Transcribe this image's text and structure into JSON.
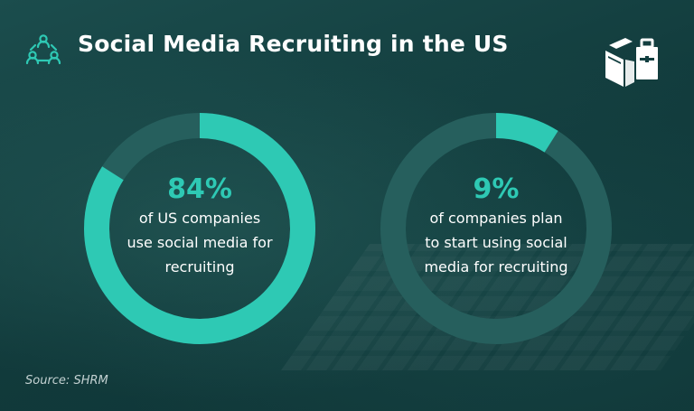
{
  "title": "Social Media Recruiting in the US",
  "source": "Source: SHRM",
  "colors": {
    "accent": "#2ec9b4",
    "track": "#265f5d",
    "background": "#123f40",
    "text": "#ffffff"
  },
  "icons": {
    "header": "people-network-icon",
    "logo": "book-briefcase-logo"
  },
  "chart_data": [
    {
      "type": "pie",
      "values": [
        84,
        16
      ],
      "highlight": 84,
      "labels": [
        "84%",
        "of US companies use social media for recruiting"
      ],
      "label_lines": [
        "of US companies",
        "use social media for",
        "recruiting"
      ]
    },
    {
      "type": "pie",
      "values": [
        9,
        91
      ],
      "highlight": 9,
      "labels": [
        "9%",
        "of companies plan to start using social media for recruiting"
      ],
      "label_lines": [
        "of companies plan",
        "to start using social",
        "media for recruiting"
      ]
    }
  ]
}
